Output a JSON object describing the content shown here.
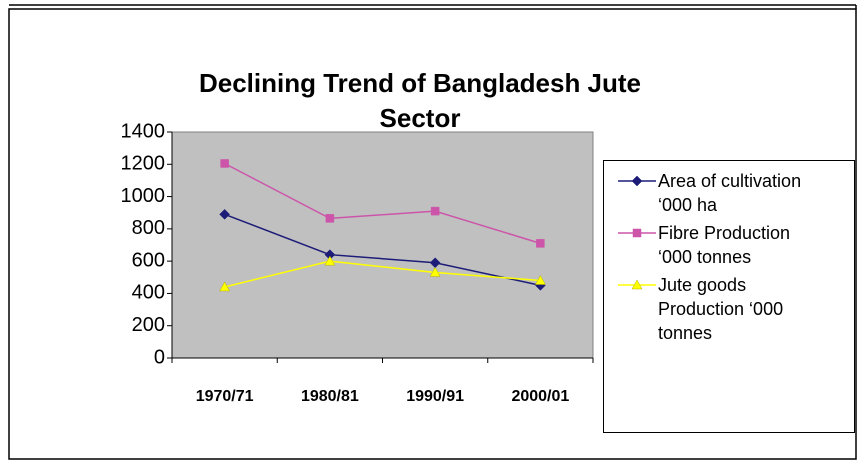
{
  "chart_data": {
    "type": "line",
    "title": "Declining Trend of Bangladesh Jute Sector",
    "categories": [
      "1970/71",
      "1980/81",
      "1990/91",
      "2000/01"
    ],
    "series": [
      {
        "name": "Area of cultivation ‘000 ha",
        "color": "#1c1c78",
        "marker": "diamond",
        "values": [
          890,
          640,
          590,
          450
        ]
      },
      {
        "name": "Fibre Production ‘000 tonnes",
        "color": "#cc55aa",
        "marker": "square",
        "values": [
          1205,
          865,
          910,
          710
        ]
      },
      {
        "name": "Jute goods Production ‘000 tonnes",
        "color": "#ffff00",
        "marker": "triangle",
        "values": [
          440,
          600,
          530,
          480
        ]
      }
    ],
    "ylim": [
      0,
      1400
    ],
    "yticks": [
      0,
      200,
      400,
      600,
      800,
      1000,
      1200,
      1400
    ],
    "grid": false,
    "legend": "right"
  }
}
